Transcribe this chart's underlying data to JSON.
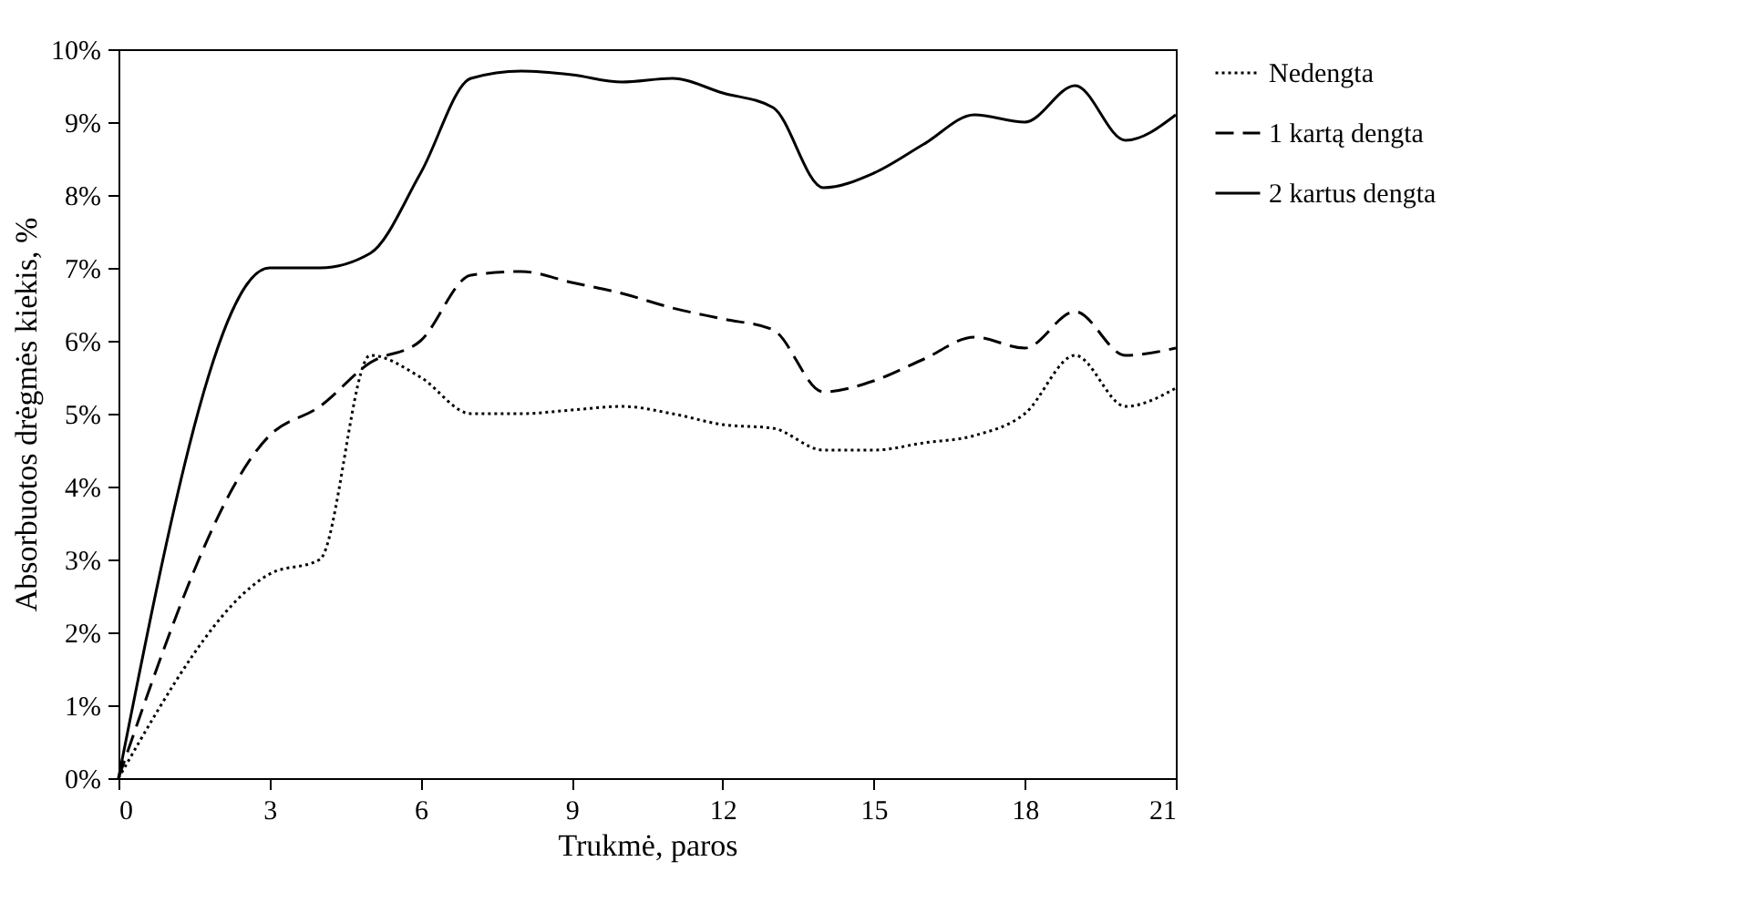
{
  "chart_data": {
    "type": "line",
    "xlabel": "Trukmė, paros",
    "ylabel": "Absorbuotos drėgmės kiekis, %",
    "x": [
      0,
      3,
      4,
      5,
      6,
      7,
      8,
      9,
      10,
      11,
      12,
      13,
      14,
      15,
      16,
      17,
      18,
      19,
      20,
      21
    ],
    "series": [
      {
        "name": "Nedengta",
        "color": "#000000",
        "line_style": "dotted",
        "values": [
          0,
          2.8,
          3.0,
          5.8,
          5.5,
          5.0,
          5.0,
          5.05,
          5.1,
          5.0,
          4.85,
          4.8,
          4.5,
          4.5,
          4.6,
          4.7,
          5.0,
          5.8,
          5.1,
          5.35
        ]
      },
      {
        "name": "1 kartą dengta",
        "color": "#000000",
        "line_style": "dashed",
        "values": [
          0,
          4.7,
          5.1,
          5.7,
          6.0,
          6.9,
          6.95,
          6.8,
          6.65,
          6.45,
          6.3,
          6.15,
          5.3,
          5.45,
          5.75,
          6.05,
          5.9,
          6.4,
          5.8,
          5.9
        ]
      },
      {
        "name": "2 kartus dengta",
        "color": "#000000",
        "line_style": "solid",
        "values": [
          0,
          7.0,
          7.0,
          7.2,
          8.3,
          9.6,
          9.7,
          9.65,
          9.55,
          9.6,
          9.4,
          9.2,
          8.1,
          8.3,
          8.7,
          9.1,
          9.0,
          9.5,
          8.75,
          9.1
        ]
      }
    ],
    "xlim": [
      0,
      21
    ],
    "xticks": [
      0,
      3,
      6,
      9,
      12,
      15,
      18,
      21
    ],
    "ylim": [
      0,
      10
    ],
    "yticks": [
      {
        "value": 0,
        "label": "0%"
      },
      {
        "value": 1,
        "label": "1%"
      },
      {
        "value": 2,
        "label": "2%"
      },
      {
        "value": 3,
        "label": "3%"
      },
      {
        "value": 4,
        "label": "4%"
      },
      {
        "value": 5,
        "label": "5%"
      },
      {
        "value": 6,
        "label": "6%"
      },
      {
        "value": 7,
        "label": "7%"
      },
      {
        "value": 8,
        "label": "8%"
      },
      {
        "value": 9,
        "label": "9%"
      },
      {
        "value": 10,
        "label": "10%"
      }
    ],
    "grid": false,
    "legend": "right",
    "marker": "none"
  }
}
